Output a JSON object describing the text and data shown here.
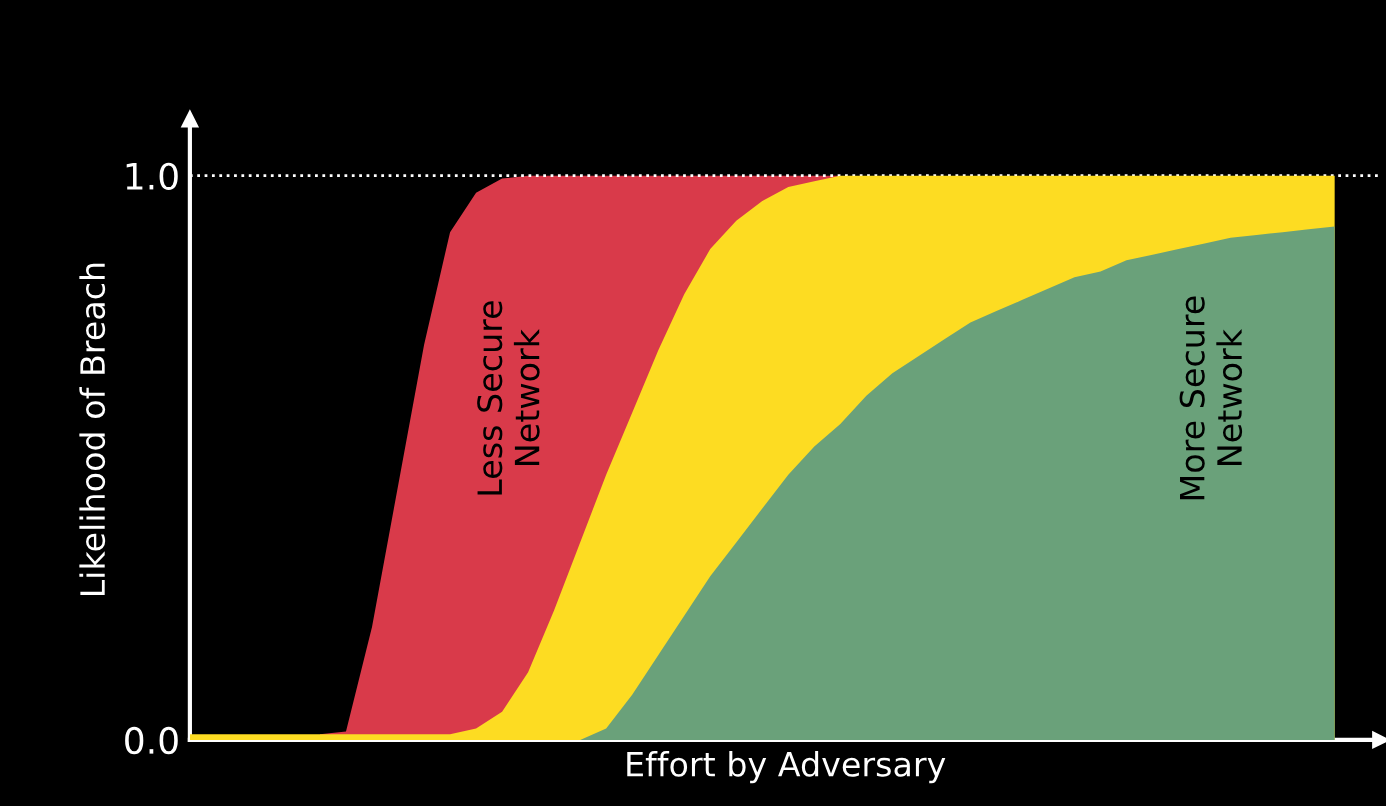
{
  "chart_data": {
    "type": "area",
    "xlabel": "Effort by Adversary",
    "ylabel": "Likelihood of Breach",
    "categories": [
      null,
      null,
      null,
      null,
      null,
      null,
      null,
      null,
      null,
      null,
      null,
      null,
      null,
      null,
      null,
      null,
      null,
      null,
      null,
      null,
      null,
      null,
      null,
      null,
      null,
      null,
      null,
      null,
      null,
      null,
      null,
      null,
      null,
      null,
      null,
      null,
      null,
      null,
      null,
      null,
      null,
      null,
      null,
      null,
      null
    ],
    "series": [
      {
        "color": "#d93a4a",
        "values": [
          null,
          null,
          null,
          null,
          null,
          0.01,
          0.015,
          0.2,
          0.45,
          0.7,
          0.9,
          0.97,
          0.995,
          1.0,
          1.0,
          1.0,
          1.0,
          1.0,
          1.0,
          1.0,
          1.0,
          1.0,
          1.0,
          1.0,
          1.0,
          1.0,
          null,
          null,
          null,
          null,
          null,
          null,
          null,
          null,
          null,
          null,
          null,
          null,
          null,
          null,
          null,
          null,
          null,
          null,
          null
        ]
      },
      {
        "color": "#fddc22",
        "values": [
          0.01,
          0.01,
          0.01,
          0.01,
          0.01,
          0.01,
          0.01,
          0.01,
          0.01,
          0.01,
          0.01,
          0.02,
          0.05,
          0.12,
          0.23,
          0.35,
          0.47,
          0.58,
          0.69,
          0.79,
          0.87,
          0.92,
          0.955,
          0.98,
          0.99,
          1.0,
          1.0,
          1.0,
          1.0,
          1.0,
          1.0,
          1.0,
          1.0,
          1.0,
          1.0,
          1.0,
          1.0,
          1.0,
          1.0,
          1.0,
          1.0,
          1.0,
          1.0,
          1.0,
          1.0
        ]
      },
      {
        "color": "#6aa17a",
        "values": [
          0,
          0,
          0,
          0,
          0,
          0,
          0,
          0,
          0,
          0,
          0,
          0,
          0,
          0,
          0,
          0,
          0.02,
          0.08,
          0.15,
          0.22,
          0.29,
          0.35,
          0.41,
          0.47,
          0.52,
          0.56,
          0.61,
          0.65,
          0.68,
          0.71,
          0.74,
          0.76,
          0.78,
          0.8,
          0.82,
          0.83,
          0.85,
          0.86,
          0.87,
          0.88,
          0.89,
          0.895,
          0.9,
          0.905,
          0.91
        ]
      }
    ],
    "ylim": [
      0,
      1.1
    ],
    "yticks": [
      {
        "value": 0,
        "label": "0.0"
      },
      {
        "value": 1,
        "label": "1.0"
      }
    ],
    "tick_labels": "y",
    "grid": false,
    "legend": false,
    "ref_lines": [
      {
        "axis": "y",
        "value": 1,
        "color": "#ffffff",
        "line_style": "dotted"
      }
    ],
    "annotations": [
      "Less Secure\nNetwork",
      "More Secure\nNetwork"
    ]
  }
}
